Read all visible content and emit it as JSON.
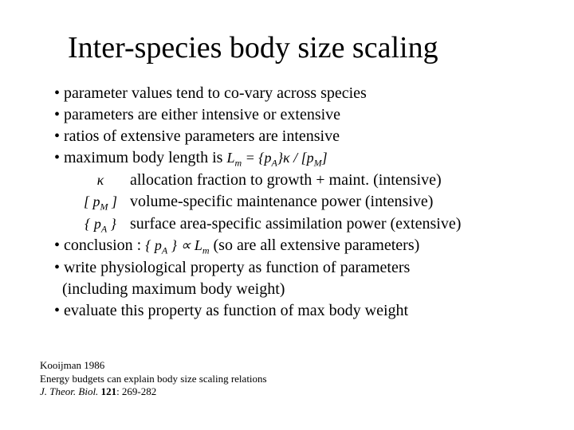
{
  "title": "Inter-species body size scaling",
  "bullets": {
    "b1": "• parameter values tend to co-vary across species",
    "b2": "• parameters are either intensive or extensive",
    "b3": "• ratios of extensive parameters are intensive",
    "b4_a": "• maximum body length is ",
    "b4_math": "L",
    "b4_sub": "m",
    "b4_eq": " = {p",
    "b4_eq_sub": "A",
    "b4_eq2": "}κ / [p",
    "b4_eq2_sub": "M",
    "b4_eq3": "]",
    "s1_sym": "κ",
    "s1_txt": "allocation fraction to growth + maint. (intensive)",
    "s2_sym": "[ p",
    "s2_sym_sub": "M",
    "s2_sym2": " ]",
    "s2_txt": "volume-specific maintenance power (intensive)",
    "s3_sym": "{ p",
    "s3_sym_sub": "A",
    "s3_sym2": " }",
    "s3_txt": "surface area-specific assimilation power (extensive)",
    "b5_a": "• conclusion : ",
    "b5_m1": "{ p",
    "b5_m1_sub": "A",
    "b5_m2": " } ∝ L",
    "b5_m2_sub": "m",
    "b5_b": " (so are all extensive parameters)",
    "b6": "• write physiological property as function of parameters",
    "b6b": "  (including maximum body weight)",
    "b7": "• evaluate this property as function of max body weight"
  },
  "ref": {
    "line1": "Kooijman 1986",
    "line2": "Energy budgets can explain body size scaling relations",
    "line3_a": "J. Theor. Biol.",
    "line3_b": " 121",
    "line3_c": ": 269-282"
  }
}
